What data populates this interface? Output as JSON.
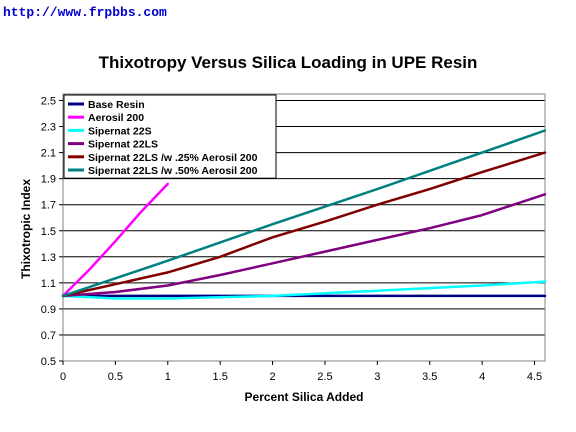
{
  "watermark": "http://www.frpbbs.com",
  "chart_data": {
    "type": "line",
    "title": "Thixotropy Versus Silica Loading in UPE Resin",
    "xlabel": "Percent Silica Added",
    "ylabel": "Thixotropic Index",
    "xlim": [
      0,
      4.6
    ],
    "ylim": [
      0.5,
      2.55
    ],
    "xticks": [
      0,
      0.5,
      1,
      1.5,
      2,
      2.5,
      3,
      3.5,
      4,
      4.5
    ],
    "xtick_labels": [
      "0",
      "0.5",
      "1",
      "1.5",
      "2",
      "2.5",
      "3",
      "3.5",
      "4",
      "4.5"
    ],
    "yticks": [
      0.5,
      0.7,
      0.9,
      1.1,
      1.3,
      1.5,
      1.7,
      1.9,
      2.1,
      2.3,
      2.5
    ],
    "ytick_labels": [
      "0.5",
      "0.7",
      "0.9",
      "1.1",
      "1.3",
      "1.5",
      "1.7",
      "1.9",
      "2.1",
      "2.3",
      "2.5"
    ],
    "grid": "horizontal",
    "legend_position": "top-left",
    "series": [
      {
        "name": "Base Resin",
        "color": "#000080",
        "points": [
          [
            0,
            1.0
          ],
          [
            4.6,
            1.0
          ]
        ]
      },
      {
        "name": "Aerosil 200",
        "color": "#ff00ff",
        "points": [
          [
            0,
            1.0
          ],
          [
            0.25,
            1.2
          ],
          [
            0.5,
            1.42
          ],
          [
            0.75,
            1.65
          ],
          [
            1.0,
            1.86
          ]
        ]
      },
      {
        "name": "Sipernat 22S",
        "color": "#00ffff",
        "points": [
          [
            0,
            1.0
          ],
          [
            0.5,
            0.98
          ],
          [
            1.0,
            0.98
          ],
          [
            2.0,
            1.0
          ],
          [
            3.0,
            1.04
          ],
          [
            4.0,
            1.08
          ],
          [
            4.6,
            1.11
          ]
        ]
      },
      {
        "name": "Sipernat 22LS",
        "color": "#800080",
        "points": [
          [
            0,
            1.0
          ],
          [
            0.5,
            1.03
          ],
          [
            1.0,
            1.08
          ],
          [
            1.5,
            1.16
          ],
          [
            2.0,
            1.25
          ],
          [
            2.5,
            1.34
          ],
          [
            3.0,
            1.43
          ],
          [
            3.5,
            1.52
          ],
          [
            4.0,
            1.62
          ],
          [
            4.6,
            1.78
          ]
        ]
      },
      {
        "name": "Sipernat 22LS /w .25% Aerosil 200",
        "color": "#800000",
        "points": [
          [
            0,
            1.0
          ],
          [
            0.5,
            1.09
          ],
          [
            1.0,
            1.18
          ],
          [
            1.5,
            1.3
          ],
          [
            2.0,
            1.45
          ],
          [
            2.5,
            1.57
          ],
          [
            3.0,
            1.7
          ],
          [
            3.5,
            1.82
          ],
          [
            4.0,
            1.95
          ],
          [
            4.6,
            2.1
          ]
        ]
      },
      {
        "name": "Sipernat 22LS /w .50% Aerosil 200",
        "color": "#008080",
        "points": [
          [
            0,
            1.0
          ],
          [
            1.0,
            1.27
          ],
          [
            2.0,
            1.55
          ],
          [
            3.0,
            1.82
          ],
          [
            4.0,
            2.1
          ],
          [
            4.6,
            2.27
          ]
        ]
      }
    ]
  }
}
